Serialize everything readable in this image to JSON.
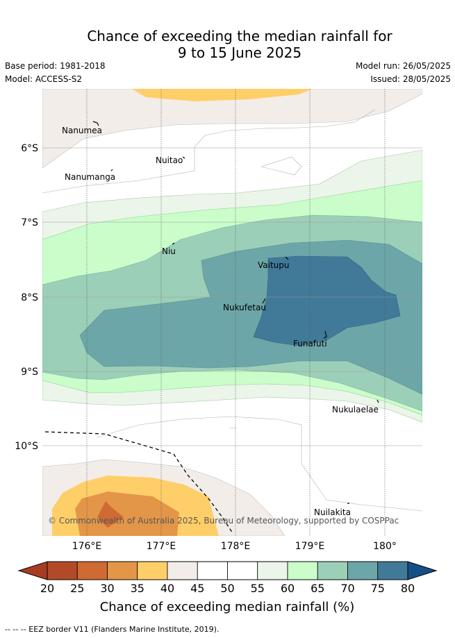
{
  "title": {
    "line1": "Chance of exceeding the median rainfall for",
    "line2": "9 to 15 June 2025"
  },
  "meta": {
    "base_period": "Base period: 1981-2018",
    "model": "Model: ACCESS-S2",
    "model_run": "Model run: 26/05/2025",
    "issued": "Issued: 28/05/2025"
  },
  "map": {
    "lat_labels": [
      "6°S",
      "7°S",
      "8°S",
      "9°S",
      "10°S"
    ],
    "lon_labels": [
      "176°E",
      "177°E",
      "178°E",
      "179°E",
      "180°"
    ],
    "islands": [
      "Nanumea",
      "Nuitao",
      "Nanumanga",
      "Niu",
      "Vaitupu",
      "Nukufetau",
      "Funafuti",
      "Nukulaelae",
      "Nuilakita"
    ],
    "credit": "© Commonwealth of Australia 2025, Bureau of Meteorology, supported by COSPPac"
  },
  "colorbar": {
    "ticks": [
      "20",
      "25",
      "30",
      "35",
      "40",
      "45",
      "50",
      "55",
      "60",
      "65",
      "70",
      "75",
      "80"
    ],
    "colors": [
      "#b34a27",
      "#cf6a33",
      "#e39648",
      "#fecf68",
      "#f2ede8",
      "#ffffff",
      "#ffffff",
      "#ecf5ea",
      "#cbfdcb",
      "#9ccfb8",
      "#6da6a8",
      "#417a99"
    ],
    "under_color": "#a83c22",
    "over_color": "#164f88",
    "title": "Chance of exceeding median rainfall (%)"
  },
  "footer": {
    "eez_note": "--  --  -- EEZ border V11 (Flanders Marine Institute, 2019)."
  }
}
